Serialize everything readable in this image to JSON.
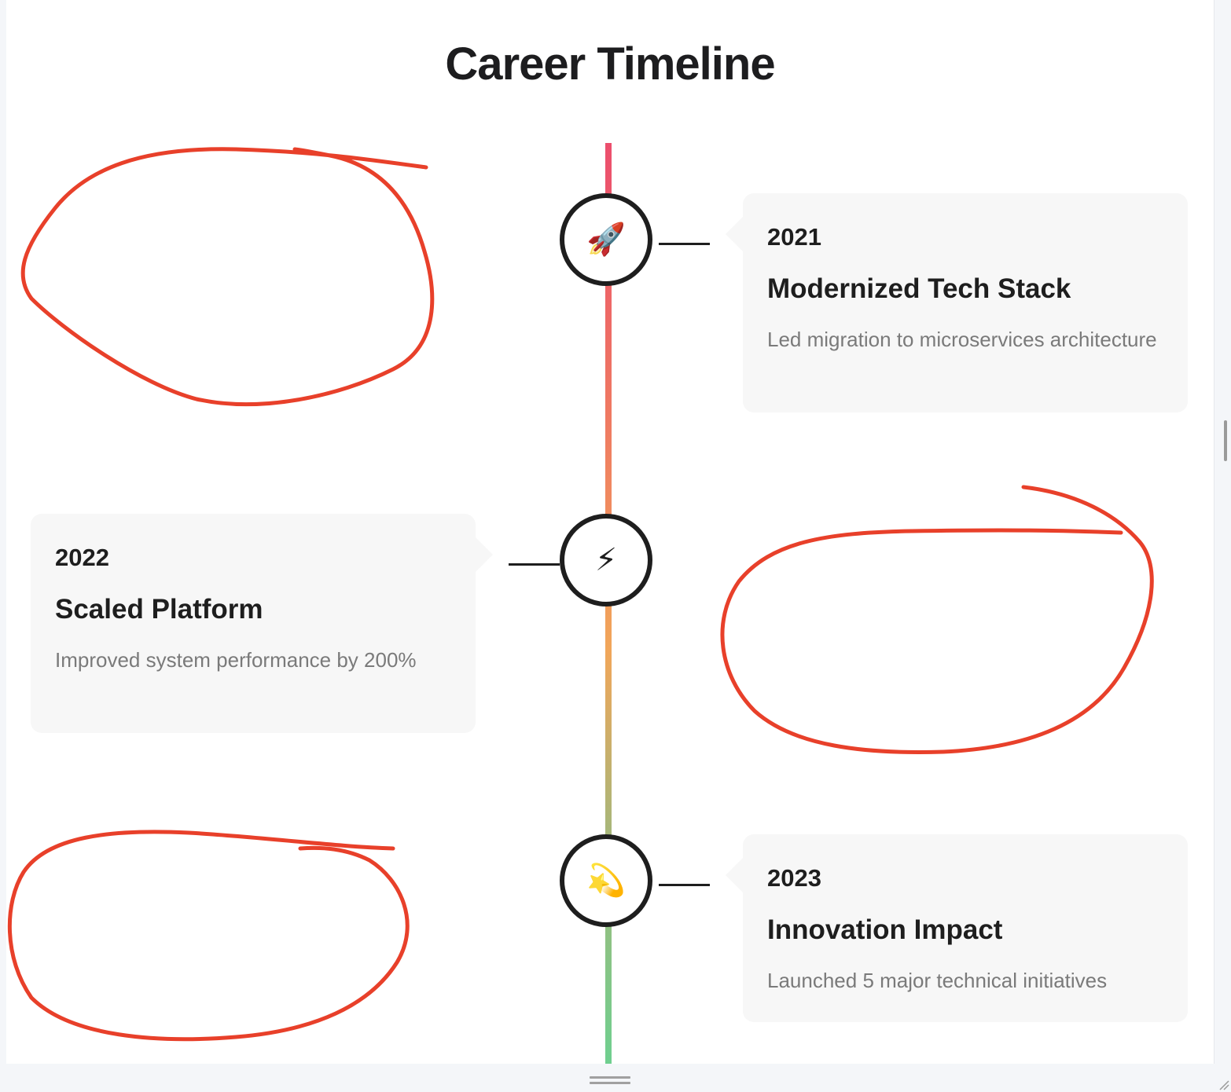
{
  "page": {
    "title": "Career Timeline"
  },
  "timeline": {
    "gradient_colors": [
      "#ec4e6d",
      "#f1a65a",
      "#6fcf8f"
    ],
    "entries": [
      {
        "side": "right",
        "icon": "rocket-icon",
        "glyph": "🚀",
        "year": "2021",
        "heading": "Modernized Tech Stack",
        "description": "Led migration to microservices architecture"
      },
      {
        "side": "left",
        "icon": "lightning-icon",
        "glyph": "⚡",
        "year": "2022",
        "heading": "Scaled Platform",
        "description": "Improved system performance by 200%"
      },
      {
        "side": "right",
        "icon": "dizzy-star-icon",
        "glyph": "💫",
        "year": "2023",
        "heading": "Innovation Impact",
        "description": "Launched 5 major technical initiatives"
      }
    ]
  },
  "annotations": {
    "stroke_color": "#e8402a"
  }
}
